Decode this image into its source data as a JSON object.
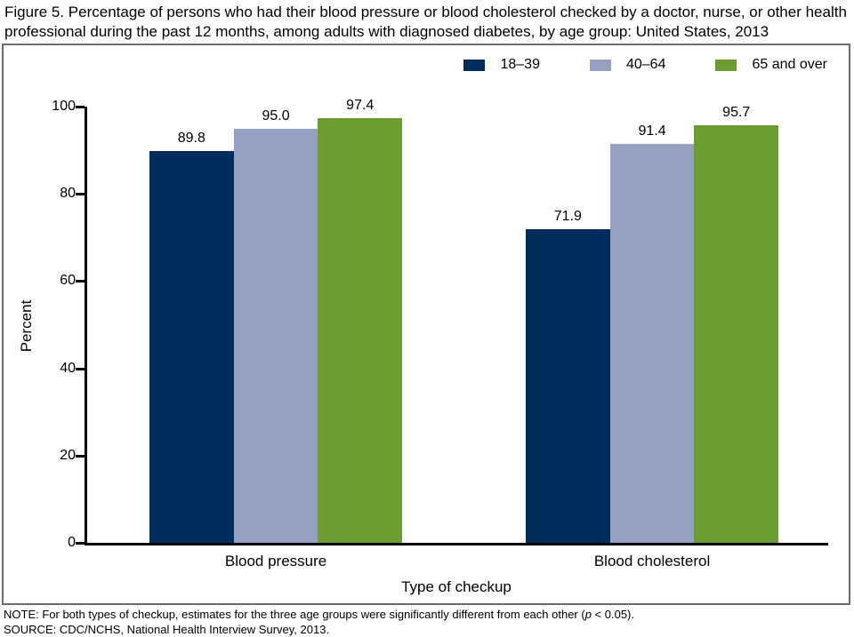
{
  "chart_data": {
    "type": "bar",
    "title": "Figure 5. Percentage of persons who had their blood pressure or blood cholesterol checked by a doctor, nurse, or other health professional during the past 12 months, among adults with diagnosed diabetes, by age group: United States, 2013",
    "categories": [
      "Blood pressure",
      "Blood cholesterol"
    ],
    "series": [
      {
        "name": "18–39",
        "color": "#002d5c",
        "values": [
          89.8,
          71.9
        ]
      },
      {
        "name": "40–64",
        "color": "#96a1c2",
        "values": [
          95.0,
          91.4
        ]
      },
      {
        "name": "65 and over",
        "color": "#6a9c2f",
        "values": [
          97.4,
          95.7
        ]
      }
    ],
    "xlabel": "Type of checkup",
    "ylabel": "Percent",
    "ylim": [
      0,
      100
    ],
    "yticks": [
      0,
      20,
      40,
      60,
      80,
      100
    ],
    "grid": false,
    "legend_position": "top-right",
    "value_labels_decimals": 1
  },
  "notes": {
    "note_prefix": "NOTE: For both types of checkup, estimates for the three age groups were significantly different from each other (",
    "note_p_var": "p",
    "note_suffix": " < 0.05).",
    "source": "SOURCE: CDC/NCHS, National Health Interview Survey, 2013."
  },
  "colors": {
    "axis": "#000000",
    "panel_border": "#6c6c6c",
    "bar_18_39": "#002d5c",
    "bar_40_64": "#96a1c2",
    "bar_65_over": "#6a9c2f"
  }
}
